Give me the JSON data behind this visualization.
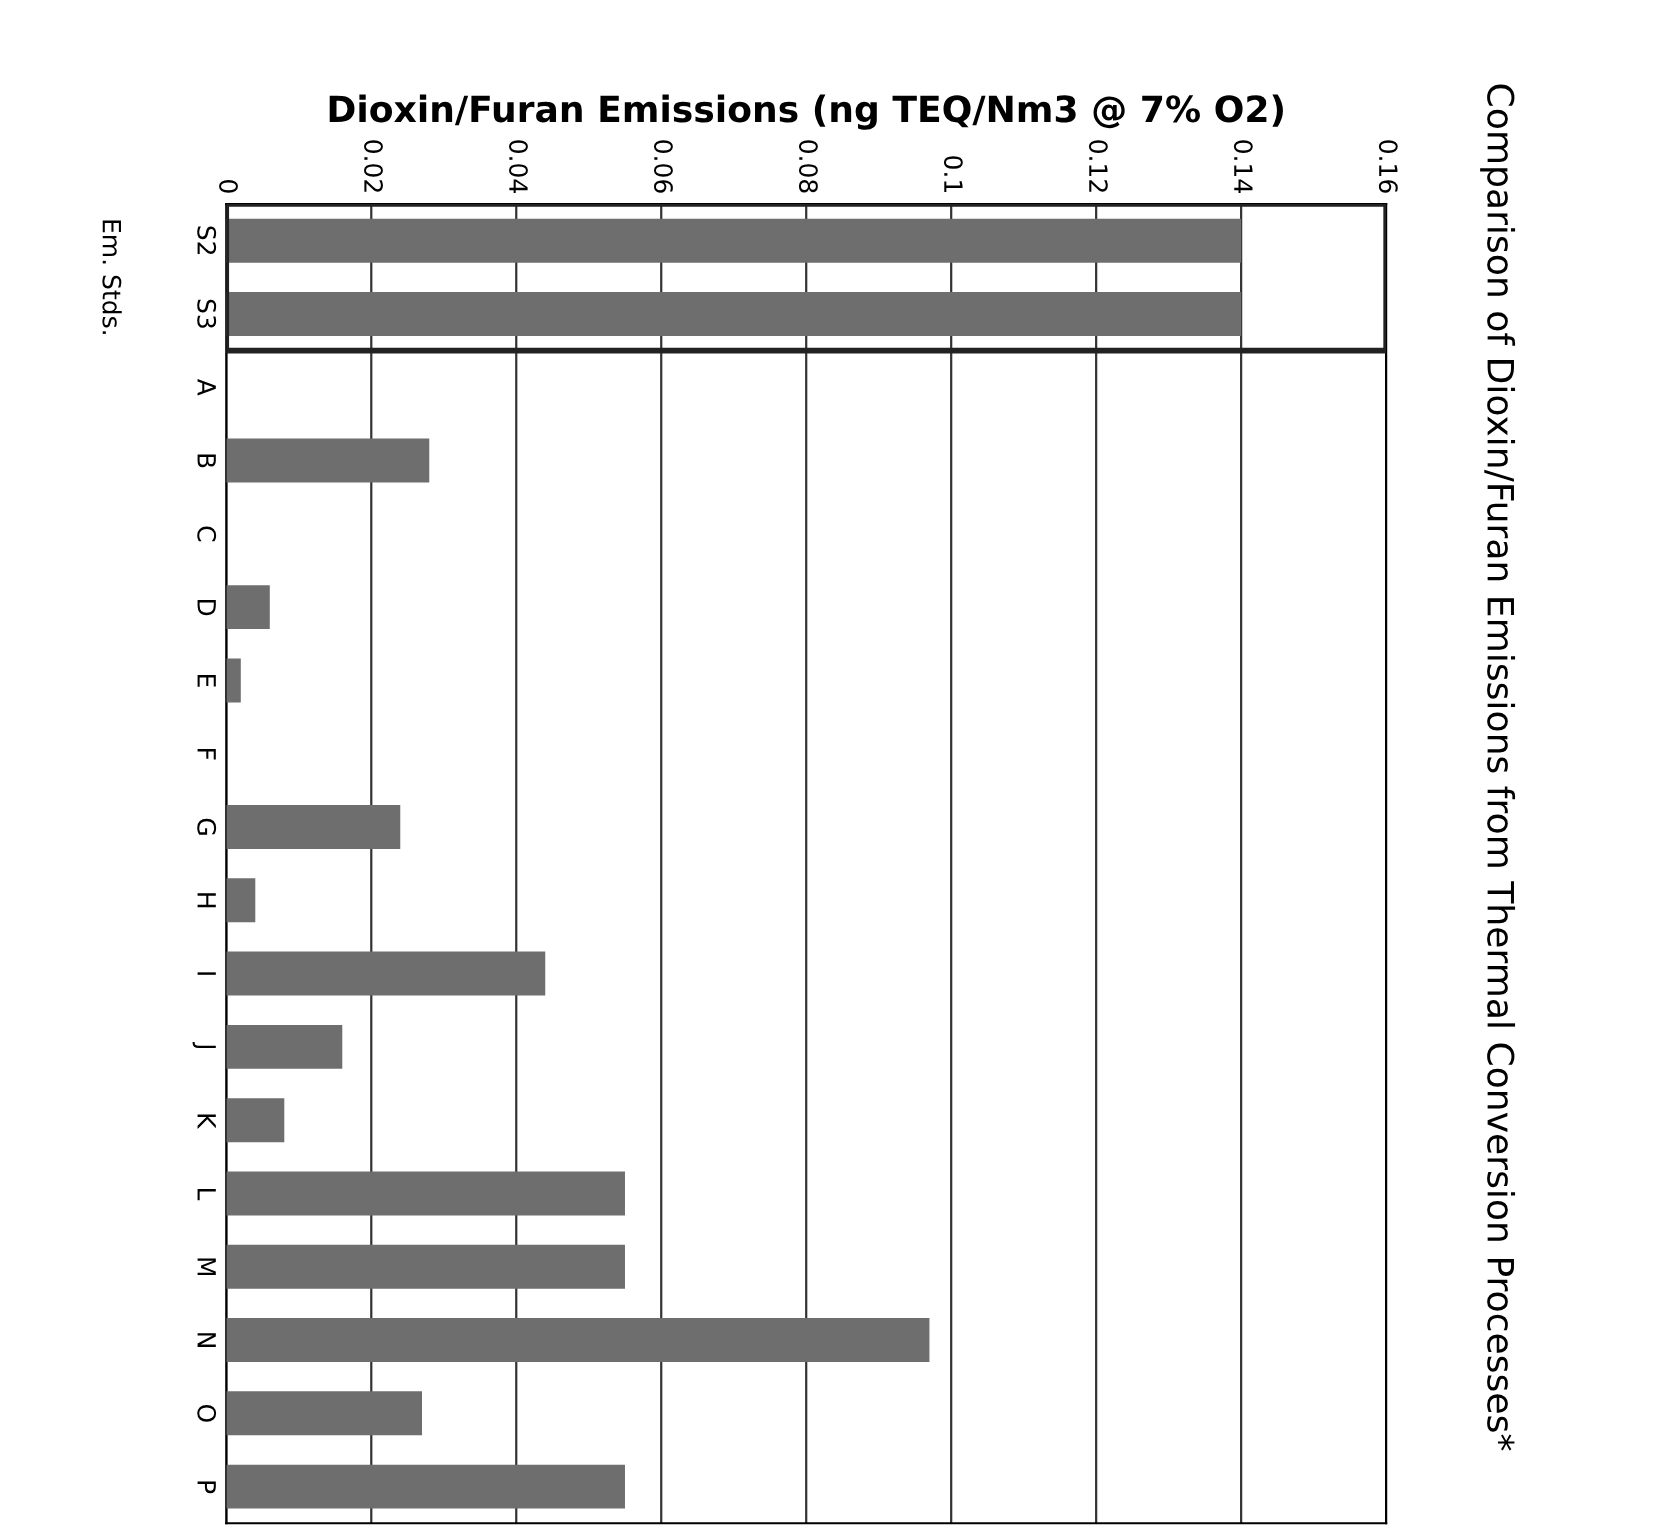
{
  "chart_data": {
    "type": "bar",
    "orientation": "horizontal",
    "title": "Comparison of Dioxin/Furan Emissions from Thermal Conversion Processes*",
    "xlabel": "Dioxin/Furan Emissions (ng TEQ/Nm3 @ 7% O2)",
    "categories": [
      "S2",
      "S3",
      "A",
      "B",
      "C",
      "D",
      "E",
      "F",
      "G",
      "H",
      "I",
      "J",
      "K",
      "L",
      "M",
      "N",
      "O",
      "P"
    ],
    "values": [
      0.14,
      0.14,
      0,
      0.028,
      0,
      0.006,
      0.002,
      0,
      0.024,
      0.004,
      0.044,
      0.016,
      0.008,
      0.055,
      0.055,
      0.097,
      0.027,
      0.055
    ],
    "color": "#6e6e6e",
    "xlim": [
      0,
      0.16
    ],
    "xticks": [
      0,
      0.02,
      0.04,
      0.06,
      0.08,
      0.1,
      0.12,
      0.14,
      0.16
    ],
    "grid": "x",
    "annotations": [
      "Em. Stds."
    ]
  }
}
